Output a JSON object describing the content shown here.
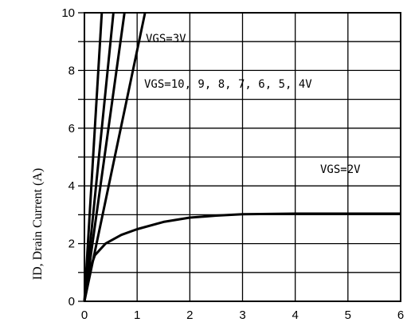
{
  "chart_data": {
    "type": "line",
    "title": "",
    "xlabel": "",
    "ylabel": "ID, Drain Current (A)",
    "xlim": [
      0,
      6
    ],
    "ylim": [
      0,
      10
    ],
    "xticks": [
      "0",
      "1",
      "2",
      "3",
      "4",
      "5",
      "6"
    ],
    "yticks": [
      "0",
      "2",
      "4",
      "6",
      "8",
      "10"
    ],
    "grid": true,
    "annotations": [
      "VGS=3V",
      "VGS=10, 9, 8, 7, 6, 5, 4V",
      "VGS=2V"
    ],
    "series": [
      {
        "x": [
          0,
          0.33
        ],
        "y": [
          0,
          10
        ]
      },
      {
        "x": [
          0,
          0.55
        ],
        "y": [
          0,
          10
        ]
      },
      {
        "x": [
          0,
          0.76
        ],
        "y": [
          0,
          10
        ]
      },
      {
        "x": [
          0,
          1.15
        ],
        "y": [
          0,
          10
        ]
      },
      {
        "x": [
          0,
          0.1,
          0.2,
          0.4,
          0.7,
          1.0,
          1.5,
          2.0,
          2.5,
          3.0,
          4.0,
          5.0,
          6.0
        ],
        "y": [
          0,
          1.1,
          1.6,
          2.0,
          2.3,
          2.5,
          2.75,
          2.9,
          2.97,
          3.02,
          3.04,
          3.04,
          3.04
        ]
      }
    ]
  }
}
